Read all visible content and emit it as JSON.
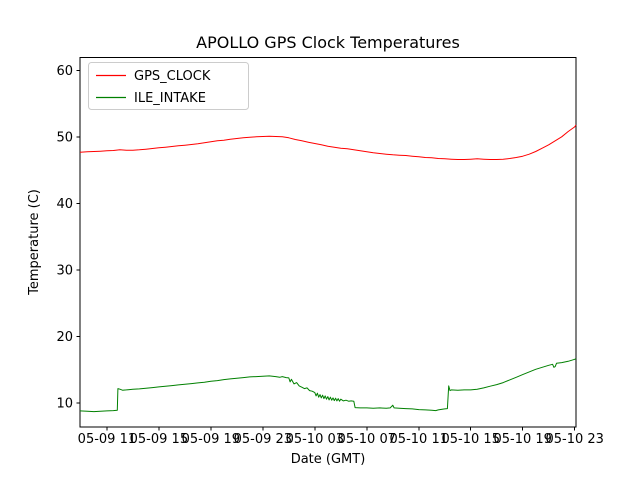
{
  "figure": {
    "background": "#ffffff"
  },
  "chart_data": {
    "type": "line",
    "title": "APOLLO GPS Clock Temperatures",
    "xlabel": "Date (GMT)",
    "ylabel": "Temperature (C)",
    "grid": false,
    "legend_position": "upper left",
    "xlim": [
      8.93,
      47.1
    ],
    "ylim": [
      6.4,
      61.9
    ],
    "xticks": [
      11,
      15,
      19,
      23,
      27,
      31,
      35,
      39,
      43,
      47
    ],
    "xtick_labels": [
      "05-09 11",
      "05-09 15",
      "05-09 19",
      "05-09 23",
      "05-10 03",
      "05-10 07",
      "05-10 11",
      "05-10 15",
      "05-10 19",
      "05-10 23"
    ],
    "yticks": [
      10,
      20,
      30,
      40,
      50,
      60
    ],
    "ytick_labels": [
      "10",
      "20",
      "30",
      "40",
      "50",
      "60"
    ],
    "x_units": "hours",
    "series": [
      {
        "name": "GPS_CLOCK",
        "color": "#ff0000",
        "points": [
          [
            8.93,
            47.7
          ],
          [
            9.5,
            47.75
          ],
          [
            10,
            47.8
          ],
          [
            10.5,
            47.85
          ],
          [
            11,
            47.9
          ],
          [
            11.5,
            47.95
          ],
          [
            12,
            48.05
          ],
          [
            12.5,
            48.0
          ],
          [
            13,
            48.0
          ],
          [
            13.5,
            48.05
          ],
          [
            14,
            48.15
          ],
          [
            14.5,
            48.25
          ],
          [
            15,
            48.35
          ],
          [
            15.5,
            48.45
          ],
          [
            16,
            48.55
          ],
          [
            16.5,
            48.65
          ],
          [
            17,
            48.75
          ],
          [
            17.5,
            48.85
          ],
          [
            18,
            48.95
          ],
          [
            18.5,
            49.1
          ],
          [
            19,
            49.25
          ],
          [
            19.5,
            49.4
          ],
          [
            20,
            49.5
          ],
          [
            20.5,
            49.65
          ],
          [
            21,
            49.75
          ],
          [
            21.5,
            49.85
          ],
          [
            22,
            49.95
          ],
          [
            22.5,
            50.0
          ],
          [
            23,
            50.05
          ],
          [
            23.5,
            50.1
          ],
          [
            24,
            50.05
          ],
          [
            24.5,
            50.0
          ],
          [
            25,
            49.85
          ],
          [
            25.5,
            49.6
          ],
          [
            26,
            49.4
          ],
          [
            26.5,
            49.2
          ],
          [
            27,
            49.0
          ],
          [
            27.5,
            48.8
          ],
          [
            28,
            48.6
          ],
          [
            28.5,
            48.45
          ],
          [
            29,
            48.3
          ],
          [
            29.5,
            48.2
          ],
          [
            30,
            48.05
          ],
          [
            30.5,
            47.9
          ],
          [
            31,
            47.75
          ],
          [
            31.5,
            47.6
          ],
          [
            32,
            47.5
          ],
          [
            32.5,
            47.4
          ],
          [
            33,
            47.3
          ],
          [
            33.5,
            47.25
          ],
          [
            34,
            47.2
          ],
          [
            34.5,
            47.1
          ],
          [
            35,
            47.0
          ],
          [
            35.5,
            46.9
          ],
          [
            36,
            46.85
          ],
          [
            36.5,
            46.75
          ],
          [
            37,
            46.7
          ],
          [
            37.5,
            46.65
          ],
          [
            38,
            46.6
          ],
          [
            38.5,
            46.6
          ],
          [
            39,
            46.65
          ],
          [
            39.5,
            46.7
          ],
          [
            40,
            46.65
          ],
          [
            40.5,
            46.6
          ],
          [
            41,
            46.6
          ],
          [
            41.5,
            46.65
          ],
          [
            42,
            46.75
          ],
          [
            42.5,
            46.9
          ],
          [
            43,
            47.1
          ],
          [
            43.5,
            47.4
          ],
          [
            44,
            47.8
          ],
          [
            44.5,
            48.3
          ],
          [
            45,
            48.8
          ],
          [
            45.5,
            49.4
          ],
          [
            46,
            50.0
          ],
          [
            46.5,
            50.8
          ],
          [
            47,
            51.5
          ],
          [
            47.1,
            51.8
          ]
        ]
      },
      {
        "name": "ILE_INTAKE",
        "color": "#008000",
        "points": [
          [
            8.93,
            8.85
          ],
          [
            9.5,
            8.8
          ],
          [
            10,
            8.75
          ],
          [
            10.5,
            8.8
          ],
          [
            11,
            8.85
          ],
          [
            11.5,
            8.9
          ],
          [
            11.8,
            8.95
          ],
          [
            11.85,
            12.2
          ],
          [
            12,
            12.1
          ],
          [
            12.2,
            11.95
          ],
          [
            12.5,
            12.0
          ],
          [
            13,
            12.1
          ],
          [
            13.5,
            12.15
          ],
          [
            14,
            12.25
          ],
          [
            14.5,
            12.35
          ],
          [
            15,
            12.45
          ],
          [
            15.5,
            12.55
          ],
          [
            16,
            12.65
          ],
          [
            16.5,
            12.75
          ],
          [
            17,
            12.85
          ],
          [
            17.5,
            12.95
          ],
          [
            18,
            13.05
          ],
          [
            18.5,
            13.15
          ],
          [
            19,
            13.3
          ],
          [
            19.5,
            13.4
          ],
          [
            20,
            13.55
          ],
          [
            20.5,
            13.65
          ],
          [
            21,
            13.75
          ],
          [
            21.5,
            13.85
          ],
          [
            22,
            13.95
          ],
          [
            22.5,
            14.0
          ],
          [
            23,
            14.05
          ],
          [
            23.5,
            14.1
          ],
          [
            24,
            14.0
          ],
          [
            24.3,
            13.9
          ],
          [
            24.5,
            14.0
          ],
          [
            24.8,
            13.85
          ],
          [
            25,
            13.8
          ],
          [
            25.1,
            13.2
          ],
          [
            25.2,
            13.6
          ],
          [
            25.4,
            12.9
          ],
          [
            25.6,
            13.1
          ],
          [
            25.8,
            12.6
          ],
          [
            26,
            12.4
          ],
          [
            26.2,
            12.2
          ],
          [
            26.4,
            12.3
          ],
          [
            26.6,
            11.9
          ],
          [
            26.8,
            11.8
          ],
          [
            27,
            11.6
          ],
          [
            27.1,
            11.1
          ],
          [
            27.2,
            11.5
          ],
          [
            27.3,
            10.9
          ],
          [
            27.4,
            11.3
          ],
          [
            27.5,
            10.8
          ],
          [
            27.6,
            11.2
          ],
          [
            27.7,
            10.7
          ],
          [
            27.8,
            11.1
          ],
          [
            27.9,
            10.6
          ],
          [
            28,
            11.0
          ],
          [
            28.1,
            10.5
          ],
          [
            28.2,
            10.9
          ],
          [
            28.3,
            10.45
          ],
          [
            28.4,
            10.8
          ],
          [
            28.5,
            10.4
          ],
          [
            28.6,
            10.75
          ],
          [
            28.7,
            10.35
          ],
          [
            28.8,
            10.7
          ],
          [
            28.9,
            10.3
          ],
          [
            29,
            10.6
          ],
          [
            29.2,
            10.35
          ],
          [
            29.4,
            10.45
          ],
          [
            29.6,
            10.3
          ],
          [
            29.8,
            10.35
          ],
          [
            30,
            10.3
          ],
          [
            30.1,
            9.35
          ],
          [
            30.5,
            9.3
          ],
          [
            31,
            9.3
          ],
          [
            31.5,
            9.25
          ],
          [
            32,
            9.3
          ],
          [
            32.5,
            9.25
          ],
          [
            32.8,
            9.3
          ],
          [
            33,
            9.7
          ],
          [
            33.1,
            9.3
          ],
          [
            33.5,
            9.25
          ],
          [
            34,
            9.2
          ],
          [
            34.5,
            9.15
          ],
          [
            35,
            9.05
          ],
          [
            35.5,
            9.0
          ],
          [
            36,
            8.95
          ],
          [
            36.3,
            8.9
          ],
          [
            36.5,
            9.0
          ],
          [
            36.8,
            9.1
          ],
          [
            37,
            9.15
          ],
          [
            37.2,
            9.2
          ],
          [
            37.3,
            12.6
          ],
          [
            37.4,
            11.9
          ],
          [
            37.5,
            12.0
          ],
          [
            38,
            11.95
          ],
          [
            38.5,
            12.0
          ],
          [
            39,
            12.0
          ],
          [
            39.5,
            12.1
          ],
          [
            40,
            12.3
          ],
          [
            40.5,
            12.55
          ],
          [
            41,
            12.8
          ],
          [
            41.5,
            13.1
          ],
          [
            42,
            13.5
          ],
          [
            42.5,
            13.9
          ],
          [
            43,
            14.3
          ],
          [
            43.5,
            14.7
          ],
          [
            44,
            15.1
          ],
          [
            44.5,
            15.4
          ],
          [
            45,
            15.7
          ],
          [
            45.3,
            15.85
          ],
          [
            45.4,
            15.4
          ],
          [
            45.5,
            15.5
          ],
          [
            45.6,
            16.0
          ],
          [
            46,
            16.1
          ],
          [
            46.5,
            16.3
          ],
          [
            47,
            16.6
          ],
          [
            47.1,
            16.7
          ]
        ]
      }
    ]
  }
}
